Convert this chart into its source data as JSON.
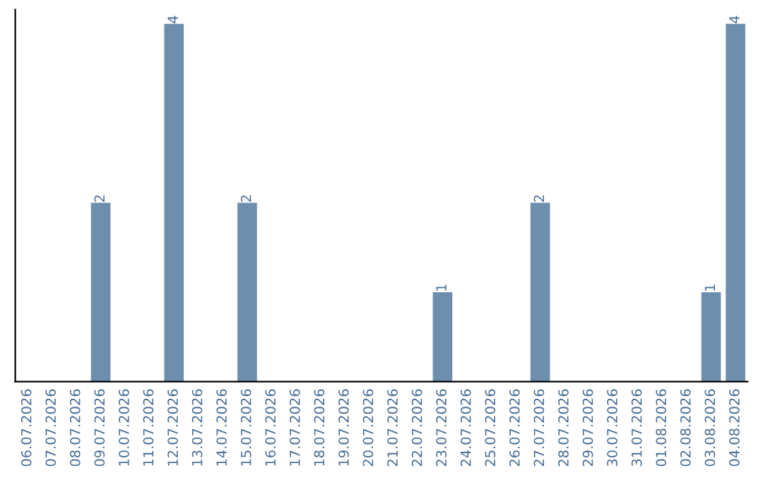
{
  "chart_data": {
    "type": "bar",
    "categories": [
      "06.07.2026",
      "07.07.2026",
      "08.07.2026",
      "09.07.2026",
      "10.07.2026",
      "11.07.2026",
      "12.07.2026",
      "13.07.2026",
      "14.07.2026",
      "15.07.2026",
      "16.07.2026",
      "17.07.2026",
      "18.07.2026",
      "19.07.2026",
      "20.07.2026",
      "21.07.2026",
      "22.07.2026",
      "23.07.2026",
      "24.07.2026",
      "25.07.2026",
      "26.07.2026",
      "27.07.2026",
      "28.07.2026",
      "29.07.2026",
      "30.07.2026",
      "31.07.2026",
      "01.08.2026",
      "02.08.2026",
      "03.08.2026",
      "04.08.2026"
    ],
    "values": [
      0,
      0,
      0,
      2,
      0,
      0,
      4,
      0,
      0,
      2,
      0,
      0,
      0,
      0,
      0,
      0,
      0,
      1,
      0,
      0,
      0,
      2,
      0,
      0,
      0,
      0,
      0,
      0,
      1,
      4
    ],
    "color": "#6d8fad",
    "value_labels": [
      null,
      null,
      null,
      "2",
      null,
      null,
      "4",
      null,
      null,
      "2",
      null,
      null,
      null,
      null,
      null,
      null,
      null,
      "1",
      null,
      null,
      null,
      "2",
      null,
      null,
      null,
      null,
      null,
      null,
      "1",
      "4"
    ],
    "tick_labels": "x",
    "grid": false
  }
}
